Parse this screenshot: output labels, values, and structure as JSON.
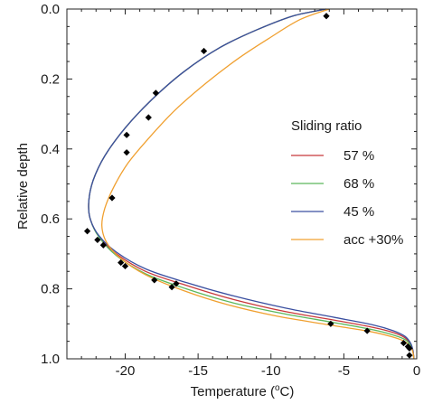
{
  "chart_data": {
    "type": "line",
    "xlabel_main": "Temperature (",
    "xlabel_sup": "o",
    "xlabel_end": "C)",
    "ylabel": "Relative depth",
    "xlim": [
      -24,
      0
    ],
    "ylim": [
      1.0,
      0.0
    ],
    "y_inverted": true,
    "grid": false,
    "x_ticks": [
      -20,
      -15,
      -10,
      -5,
      0
    ],
    "x_tick_labels": [
      "-20",
      "-15",
      "-10",
      "-5",
      "0"
    ],
    "y_ticks": [
      0.0,
      0.2,
      0.4,
      0.6,
      0.8,
      1.0
    ],
    "y_tick_labels": [
      "0.0",
      "0.2",
      "0.4",
      "0.6",
      "0.8",
      "1.0"
    ],
    "legend": {
      "title": "Sliding ratio",
      "placement": "right"
    },
    "series": [
      {
        "name": "57 %",
        "color": "#c8383a",
        "x": [
          -6.2,
          -8.5,
          -11.0,
          -13.5,
          -16.0,
          -18.2,
          -20.0,
          -21.4,
          -22.2,
          -22.5,
          -22.4,
          -21.8,
          -20.6,
          -18.6,
          -15.8,
          -12.6,
          -9.0,
          -5.6,
          -3.0,
          -1.6,
          -0.8,
          -0.4,
          -0.25,
          -0.2
        ],
        "y": [
          0.0,
          0.02,
          0.06,
          0.11,
          0.18,
          0.26,
          0.34,
          0.42,
          0.49,
          0.55,
          0.6,
          0.65,
          0.7,
          0.75,
          0.79,
          0.83,
          0.865,
          0.89,
          0.91,
          0.925,
          0.94,
          0.96,
          0.98,
          1.0
        ]
      },
      {
        "name": "68 %",
        "color": "#5cb85c",
        "x": [
          -6.2,
          -8.5,
          -11.0,
          -13.5,
          -16.0,
          -18.2,
          -20.0,
          -21.4,
          -22.2,
          -22.5,
          -22.4,
          -21.8,
          -20.6,
          -18.6,
          -15.8,
          -12.6,
          -9.0,
          -5.6,
          -3.0,
          -1.6,
          -0.8,
          -0.4,
          -0.25,
          -0.2
        ],
        "y": [
          0.0,
          0.02,
          0.06,
          0.11,
          0.18,
          0.26,
          0.34,
          0.42,
          0.49,
          0.55,
          0.6,
          0.652,
          0.705,
          0.757,
          0.8,
          0.84,
          0.872,
          0.897,
          0.917,
          0.932,
          0.945,
          0.963,
          0.982,
          1.0
        ]
      },
      {
        "name": "45 %",
        "color": "#3a4fa0",
        "x": [
          -6.2,
          -8.5,
          -11.0,
          -13.5,
          -16.0,
          -18.2,
          -20.0,
          -21.4,
          -22.2,
          -22.5,
          -22.4,
          -21.8,
          -20.6,
          -18.6,
          -15.8,
          -12.6,
          -9.0,
          -5.6,
          -3.0,
          -1.6,
          -0.8,
          -0.4,
          -0.25,
          -0.2
        ],
        "y": [
          0.0,
          0.02,
          0.06,
          0.11,
          0.18,
          0.26,
          0.34,
          0.42,
          0.49,
          0.55,
          0.6,
          0.648,
          0.695,
          0.743,
          0.782,
          0.82,
          0.855,
          0.882,
          0.903,
          0.92,
          0.936,
          0.957,
          0.978,
          1.0
        ]
      },
      {
        "name": "acc +30%",
        "color": "#f0a030",
        "x": [
          -6.0,
          -8.0,
          -10.0,
          -12.2,
          -14.4,
          -16.6,
          -18.4,
          -19.8,
          -20.8,
          -21.4,
          -21.6,
          -21.3,
          -20.4,
          -18.6,
          -16.0,
          -13.0,
          -9.6,
          -6.0,
          -3.2,
          -1.7,
          -0.85,
          -0.4,
          -0.25,
          -0.2
        ],
        "y": [
          0.0,
          0.03,
          0.08,
          0.14,
          0.21,
          0.29,
          0.37,
          0.44,
          0.51,
          0.57,
          0.62,
          0.665,
          0.71,
          0.76,
          0.805,
          0.845,
          0.878,
          0.903,
          0.922,
          0.937,
          0.95,
          0.967,
          0.984,
          1.0
        ]
      }
    ],
    "observations": {
      "x": [
        -6.2,
        -14.6,
        -17.9,
        -18.4,
        -19.9,
        -19.9,
        -20.9,
        -22.6,
        -21.9,
        -21.5,
        -20.3,
        -20.0,
        -18.0,
        -16.8,
        -16.5,
        -5.9,
        -3.4,
        -0.9,
        -0.6,
        -0.5,
        -0.5
      ],
      "y": [
        0.02,
        0.12,
        0.24,
        0.31,
        0.36,
        0.41,
        0.54,
        0.635,
        0.66,
        0.675,
        0.725,
        0.735,
        0.775,
        0.795,
        0.785,
        0.9,
        0.92,
        0.955,
        0.965,
        0.97,
        0.99
      ]
    }
  }
}
